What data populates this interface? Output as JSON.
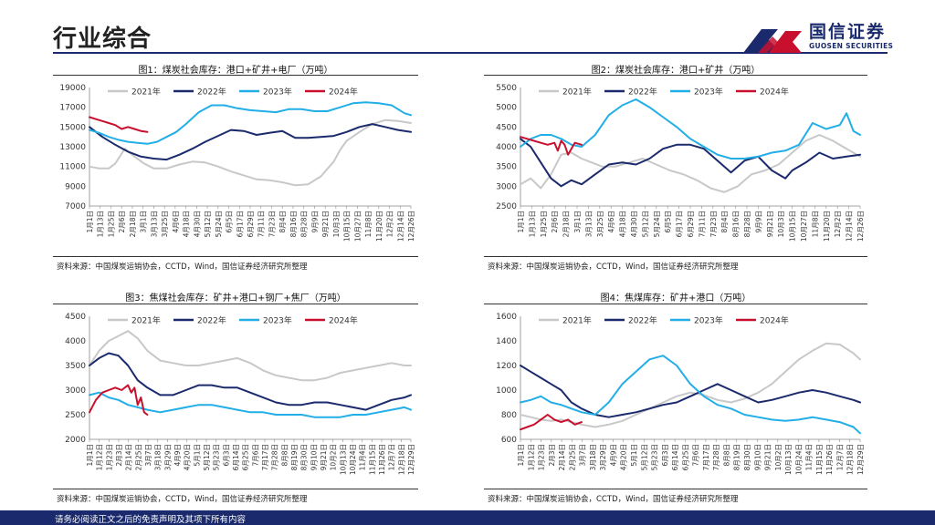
{
  "page": {
    "title": "行业综合",
    "logo_name": "国信证券",
    "logo_sub": "GUOSEN SECURITIES",
    "footer": "请务必阅读正文之后的免责声明及其项下所有内容",
    "colors": {
      "2021年": "#c8c8c8",
      "2022年": "#1a2a6c",
      "2023年": "#22aee6",
      "2024年": "#c8102e"
    }
  },
  "panels": [
    {
      "title": "图1：煤炭社会库存：港口+矿井+电厂（万吨）",
      "source": "资料来源：中国煤炭运销协会，CCTD，Wind，国信证券经济研究所整理"
    },
    {
      "title": "图2：煤炭社会库存：港口+矿井（万吨）",
      "source": "资料来源：中国煤炭运销协会，CCTD，Wind，国信证券经济研究所整理"
    },
    {
      "title": "图3：焦煤社会库存：矿井+港口+钢厂+焦厂（万吨）",
      "source": "资料来源：中国煤炭运销协会，CCTD，Wind，国信证券经济研究所整理"
    },
    {
      "title": "图4：焦煤库存：矿井+港口（万吨）",
      "source": "资料来源：中国煤炭运销协会，CCTD，Wind，国信证券经济研究所整理"
    }
  ],
  "chart_data": [
    {
      "type": "line",
      "title": "图1：煤炭社会库存：港口+矿井+电厂（万吨）",
      "ylim": [
        7000,
        19000
      ],
      "yticks": [
        7000,
        9000,
        11000,
        13000,
        15000,
        17000,
        19000
      ],
      "xticks": [
        "1月1日",
        "1月13日",
        "1月25日",
        "2月6日",
        "2月18日",
        "3月1日",
        "3月13日",
        "3月25日",
        "4月6日",
        "4月18日",
        "4月30日",
        "5月12日",
        "5月24日",
        "6月5日",
        "6月17日",
        "6月29日",
        "7月11日",
        "7月23日",
        "8月4日",
        "8月16日",
        "8月28日",
        "9月9日",
        "9月21日",
        "10月3日",
        "10月15日",
        "10月27日",
        "11月8日",
        "11月20日",
        "12月2日",
        "12月14日",
        "12月26日"
      ],
      "legend": "top",
      "series": [
        {
          "name": "2021年",
          "x": [
            0,
            3,
            6,
            8,
            11,
            14,
            17,
            20,
            24,
            28,
            32,
            36,
            40,
            44,
            48,
            52,
            56,
            60,
            64,
            68,
            72,
            76,
            78,
            80,
            84,
            88,
            92,
            96,
            100
          ],
          "y": [
            11000,
            10800,
            10800,
            11300,
            12800,
            12000,
            11300,
            10800,
            10800,
            11200,
            11500,
            11400,
            11000,
            10500,
            10100,
            9700,
            9600,
            9400,
            9100,
            9200,
            10000,
            11500,
            12700,
            13600,
            14500,
            15300,
            15700,
            15600,
            15400
          ]
        },
        {
          "name": "2022年",
          "x": [
            0,
            4,
            8,
            12,
            16,
            20,
            24,
            28,
            32,
            36,
            40,
            44,
            48,
            52,
            56,
            60,
            64,
            68,
            72,
            76,
            80,
            84,
            88,
            92,
            96,
            100
          ],
          "y": [
            15000,
            14000,
            13200,
            12500,
            12000,
            11800,
            11700,
            12200,
            12800,
            13500,
            14100,
            14700,
            14600,
            14200,
            14400,
            14600,
            13900,
            13900,
            14000,
            14100,
            14500,
            15000,
            15300,
            15000,
            14700,
            14500
          ]
        },
        {
          "name": "2023年",
          "x": [
            0,
            3,
            6,
            9,
            12,
            15,
            18,
            21,
            24,
            27,
            30,
            34,
            38,
            42,
            46,
            50,
            54,
            58,
            62,
            66,
            70,
            74,
            78,
            82,
            86,
            90,
            94,
            98,
            100
          ],
          "y": [
            14700,
            14400,
            14000,
            13700,
            13500,
            13400,
            13300,
            13500,
            14000,
            14500,
            15300,
            16500,
            17200,
            17200,
            16900,
            16700,
            16600,
            16500,
            16800,
            16800,
            16600,
            16600,
            17000,
            17400,
            17500,
            17400,
            17200,
            16400,
            16200
          ]
        },
        {
          "name": "2024年",
          "x": [
            0,
            2,
            4,
            6,
            8,
            10,
            12,
            14,
            16,
            18
          ],
          "y": [
            16000,
            15800,
            15600,
            15400,
            15200,
            14800,
            15000,
            14800,
            14600,
            14500
          ]
        }
      ]
    },
    {
      "type": "line",
      "title": "图2：煤炭社会库存：港口+矿井（万吨）",
      "ylim": [
        2500,
        5500
      ],
      "yticks": [
        2500,
        3000,
        3500,
        4000,
        4500,
        5000,
        5500
      ],
      "xticks": [
        "1月1日",
        "1月13日",
        "1月25日",
        "2月6日",
        "2月18日",
        "3月1日",
        "3月13日",
        "3月25日",
        "4月6日",
        "4月18日",
        "4月30日",
        "5月12日",
        "5月24日",
        "6月5日",
        "6月17日",
        "6月29日",
        "7月11日",
        "7月23日",
        "8月4日",
        "8月16日",
        "8月28日",
        "9月9日",
        "9月21日",
        "10月3日",
        "10月15日",
        "10月27日",
        "11月8日",
        "11月20日",
        "12月2日",
        "12月14日",
        "12月26日"
      ],
      "legend": "top",
      "series": [
        {
          "name": "2021年",
          "x": [
            0,
            3,
            6,
            9,
            12,
            15,
            18,
            21,
            24,
            28,
            32,
            36,
            40,
            44,
            48,
            52,
            56,
            60,
            64,
            68,
            72,
            76,
            80,
            84,
            88,
            92,
            96,
            100
          ],
          "y": [
            3050,
            3200,
            2950,
            3300,
            3800,
            3850,
            3700,
            3600,
            3500,
            3500,
            3600,
            3700,
            3550,
            3400,
            3300,
            3150,
            2950,
            2850,
            3000,
            3300,
            3400,
            3550,
            3850,
            4150,
            4300,
            4150,
            3950,
            3750
          ]
        },
        {
          "name": "2022年",
          "x": [
            0,
            3,
            6,
            9,
            12,
            15,
            18,
            22,
            26,
            30,
            34,
            38,
            42,
            46,
            50,
            54,
            58,
            62,
            66,
            70,
            74,
            78,
            80,
            84,
            88,
            92,
            96,
            100
          ],
          "y": [
            4200,
            4000,
            3600,
            3200,
            3000,
            3150,
            3050,
            3300,
            3550,
            3600,
            3550,
            3700,
            3950,
            4050,
            4050,
            3950,
            3650,
            3350,
            3650,
            3750,
            3400,
            3200,
            3400,
            3600,
            3850,
            3700,
            3750,
            3800
          ]
        },
        {
          "name": "2023年",
          "x": [
            0,
            3,
            6,
            9,
            12,
            15,
            18,
            22,
            26,
            30,
            34,
            38,
            42,
            46,
            50,
            54,
            58,
            62,
            66,
            70,
            74,
            78,
            82,
            86,
            90,
            94,
            96,
            98,
            100
          ],
          "y": [
            4000,
            4200,
            4300,
            4300,
            4200,
            4050,
            4000,
            4300,
            4800,
            5050,
            5200,
            5000,
            4750,
            4500,
            4200,
            4000,
            3800,
            3700,
            3700,
            3750,
            3850,
            3900,
            4050,
            4600,
            4450,
            4550,
            4850,
            4400,
            4300
          ]
        },
        {
          "name": "2024年",
          "x": [
            0,
            2,
            4,
            6,
            8,
            10,
            11,
            12,
            13,
            14,
            16,
            18
          ],
          "y": [
            4250,
            4200,
            4150,
            4100,
            4050,
            4100,
            3900,
            4150,
            4050,
            3800,
            4100,
            4050
          ]
        }
      ]
    },
    {
      "type": "line",
      "title": "图3：焦煤社会库存：矿井+港口+钢厂+焦厂（万吨）",
      "ylim": [
        2000,
        4500
      ],
      "yticks": [
        2000,
        2500,
        3000,
        3500,
        4000,
        4500
      ],
      "xticks": [
        "1月1日",
        "1月12日",
        "1月23日",
        "2月3日",
        "2月14日",
        "2月25日",
        "3月7日",
        "3月18日",
        "3月29日",
        "4月9日",
        "4月20日",
        "5月1日",
        "5月12日",
        "5月23日",
        "6月3日",
        "6月14日",
        "6月25日",
        "7月6日",
        "7月17日",
        "7月28日",
        "8月8日",
        "8月19日",
        "8月30日",
        "9月10日",
        "9月21日",
        "10月2日",
        "10月13日",
        "10月24日",
        "11月4日",
        "11月15日",
        "11月26日",
        "12月7日",
        "12月18日",
        "12月29日"
      ],
      "legend": "top",
      "series": [
        {
          "name": "2021年",
          "x": [
            0,
            3,
            6,
            9,
            12,
            15,
            18,
            22,
            26,
            30,
            34,
            38,
            42,
            46,
            50,
            54,
            58,
            62,
            66,
            70,
            74,
            78,
            82,
            86,
            90,
            94,
            98,
            100
          ],
          "y": [
            3500,
            3800,
            4000,
            4100,
            4200,
            4050,
            3800,
            3600,
            3550,
            3500,
            3500,
            3550,
            3600,
            3650,
            3550,
            3400,
            3300,
            3250,
            3200,
            3200,
            3250,
            3350,
            3400,
            3450,
            3500,
            3550,
            3500,
            3500
          ]
        },
        {
          "name": "2022年",
          "x": [
            0,
            3,
            6,
            9,
            12,
            15,
            18,
            22,
            26,
            30,
            34,
            38,
            42,
            46,
            50,
            54,
            58,
            62,
            66,
            70,
            74,
            78,
            82,
            86,
            90,
            94,
            98,
            100
          ],
          "y": [
            3500,
            3650,
            3750,
            3700,
            3500,
            3200,
            3050,
            2900,
            2900,
            3000,
            3100,
            3100,
            3050,
            3050,
            2950,
            2850,
            2750,
            2700,
            2700,
            2750,
            2750,
            2700,
            2650,
            2600,
            2700,
            2800,
            2850,
            2900
          ]
        },
        {
          "name": "2023年",
          "x": [
            0,
            3,
            6,
            9,
            12,
            15,
            18,
            22,
            26,
            30,
            34,
            38,
            42,
            46,
            50,
            54,
            58,
            62,
            66,
            70,
            74,
            78,
            82,
            86,
            90,
            94,
            98,
            100
          ],
          "y": [
            2900,
            2950,
            2850,
            2800,
            2700,
            2650,
            2600,
            2550,
            2600,
            2650,
            2700,
            2700,
            2650,
            2600,
            2550,
            2550,
            2500,
            2500,
            2500,
            2450,
            2450,
            2450,
            2500,
            2500,
            2550,
            2600,
            2650,
            2600
          ]
        },
        {
          "name": "2024年",
          "x": [
            0,
            2,
            4,
            6,
            8,
            10,
            12,
            13,
            14,
            15,
            16,
            17,
            18
          ],
          "y": [
            2550,
            2800,
            2950,
            3000,
            3050,
            3000,
            3100,
            2950,
            3050,
            2700,
            2850,
            2550,
            2500
          ]
        }
      ]
    },
    {
      "type": "line",
      "title": "图4：焦煤库存：矿井+港口（万吨）",
      "ylim": [
        600,
        1600
      ],
      "yticks": [
        600,
        800,
        1000,
        1200,
        1400,
        1600
      ],
      "xticks": [
        "1月1日",
        "1月12日",
        "1月23日",
        "2月3日",
        "2月14日",
        "2月25日",
        "3月7日",
        "3月18日",
        "3月29日",
        "4月9日",
        "4月20日",
        "5月1日",
        "5月12日",
        "5月23日",
        "6月3日",
        "6月14日",
        "6月25日",
        "7月6日",
        "7月17日",
        "7月28日",
        "8月8日",
        "8月19日",
        "8月30日",
        "9月10日",
        "9月21日",
        "10月2日",
        "10月13日",
        "10月24日",
        "11月4日",
        "11月15日",
        "11月26日",
        "12月7日",
        "12月18日",
        "12月29日"
      ],
      "legend": "top",
      "series": [
        {
          "name": "2021年",
          "x": [
            0,
            3,
            6,
            9,
            12,
            15,
            18,
            22,
            26,
            30,
            34,
            38,
            42,
            46,
            50,
            54,
            58,
            62,
            66,
            70,
            74,
            78,
            82,
            86,
            90,
            94,
            98,
            100
          ],
          "y": [
            800,
            780,
            760,
            750,
            760,
            740,
            720,
            700,
            720,
            750,
            800,
            850,
            900,
            950,
            980,
            960,
            920,
            900,
            930,
            980,
            1050,
            1150,
            1250,
            1320,
            1380,
            1370,
            1300,
            1250
          ]
        },
        {
          "name": "2022年",
          "x": [
            0,
            3,
            6,
            9,
            12,
            15,
            18,
            22,
            26,
            30,
            34,
            38,
            42,
            46,
            50,
            54,
            58,
            62,
            66,
            70,
            74,
            78,
            82,
            86,
            90,
            94,
            98,
            100
          ],
          "y": [
            1200,
            1150,
            1100,
            1050,
            1000,
            900,
            850,
            800,
            780,
            800,
            820,
            850,
            880,
            900,
            950,
            1000,
            1050,
            1000,
            950,
            900,
            920,
            950,
            980,
            1000,
            980,
            950,
            920,
            900
          ]
        },
        {
          "name": "2023年",
          "x": [
            0,
            3,
            6,
            9,
            12,
            15,
            18,
            22,
            26,
            30,
            34,
            38,
            42,
            46,
            50,
            54,
            58,
            62,
            66,
            70,
            74,
            78,
            82,
            86,
            90,
            94,
            98,
            100
          ],
          "y": [
            900,
            920,
            950,
            900,
            880,
            850,
            820,
            800,
            900,
            1050,
            1150,
            1250,
            1280,
            1200,
            1050,
            950,
            880,
            850,
            800,
            780,
            760,
            750,
            760,
            780,
            760,
            740,
            700,
            650
          ]
        },
        {
          "name": "2024年",
          "x": [
            0,
            2,
            4,
            6,
            8,
            10,
            12,
            14,
            16,
            18
          ],
          "y": [
            680,
            700,
            720,
            760,
            800,
            760,
            740,
            760,
            720,
            740
          ]
        }
      ]
    }
  ]
}
